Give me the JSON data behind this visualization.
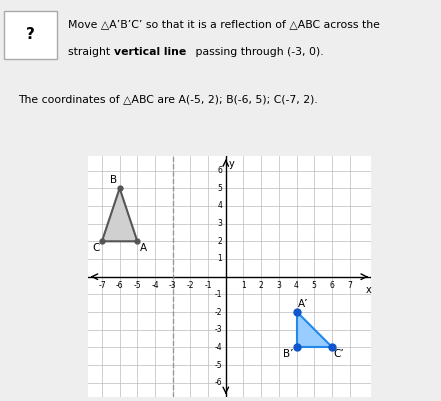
{
  "abc": {
    "A": [
      -5,
      2
    ],
    "B": [
      -6,
      5
    ],
    "C": [
      -7,
      2
    ]
  },
  "abc_prime": {
    "A_prime": [
      4,
      -2
    ],
    "B_prime": [
      4,
      -4
    ],
    "C_prime": [
      6,
      -4
    ]
  },
  "abc_color": "#555555",
  "abc_fill": "#d0d0d0",
  "abc_prime_color": "#2288ee",
  "abc_prime_fill": "#99ccff",
  "abc_prime_dot_color": "#1155cc",
  "dashed_line_x": -3,
  "dashed_line_color": "#888888",
  "xlim": [
    -7.8,
    8.2
  ],
  "ylim": [
    -6.8,
    6.8
  ],
  "xticks": [
    -7,
    -6,
    -5,
    -4,
    -3,
    -2,
    -1,
    1,
    2,
    3,
    4,
    5,
    6,
    7
  ],
  "yticks": [
    -6,
    -5,
    -4,
    -3,
    -2,
    -1,
    1,
    2,
    3,
    4,
    5,
    6
  ],
  "grid_color": "#bbbbbb",
  "bg_color": "#eeeeee",
  "graph_bg": "#ffffff"
}
